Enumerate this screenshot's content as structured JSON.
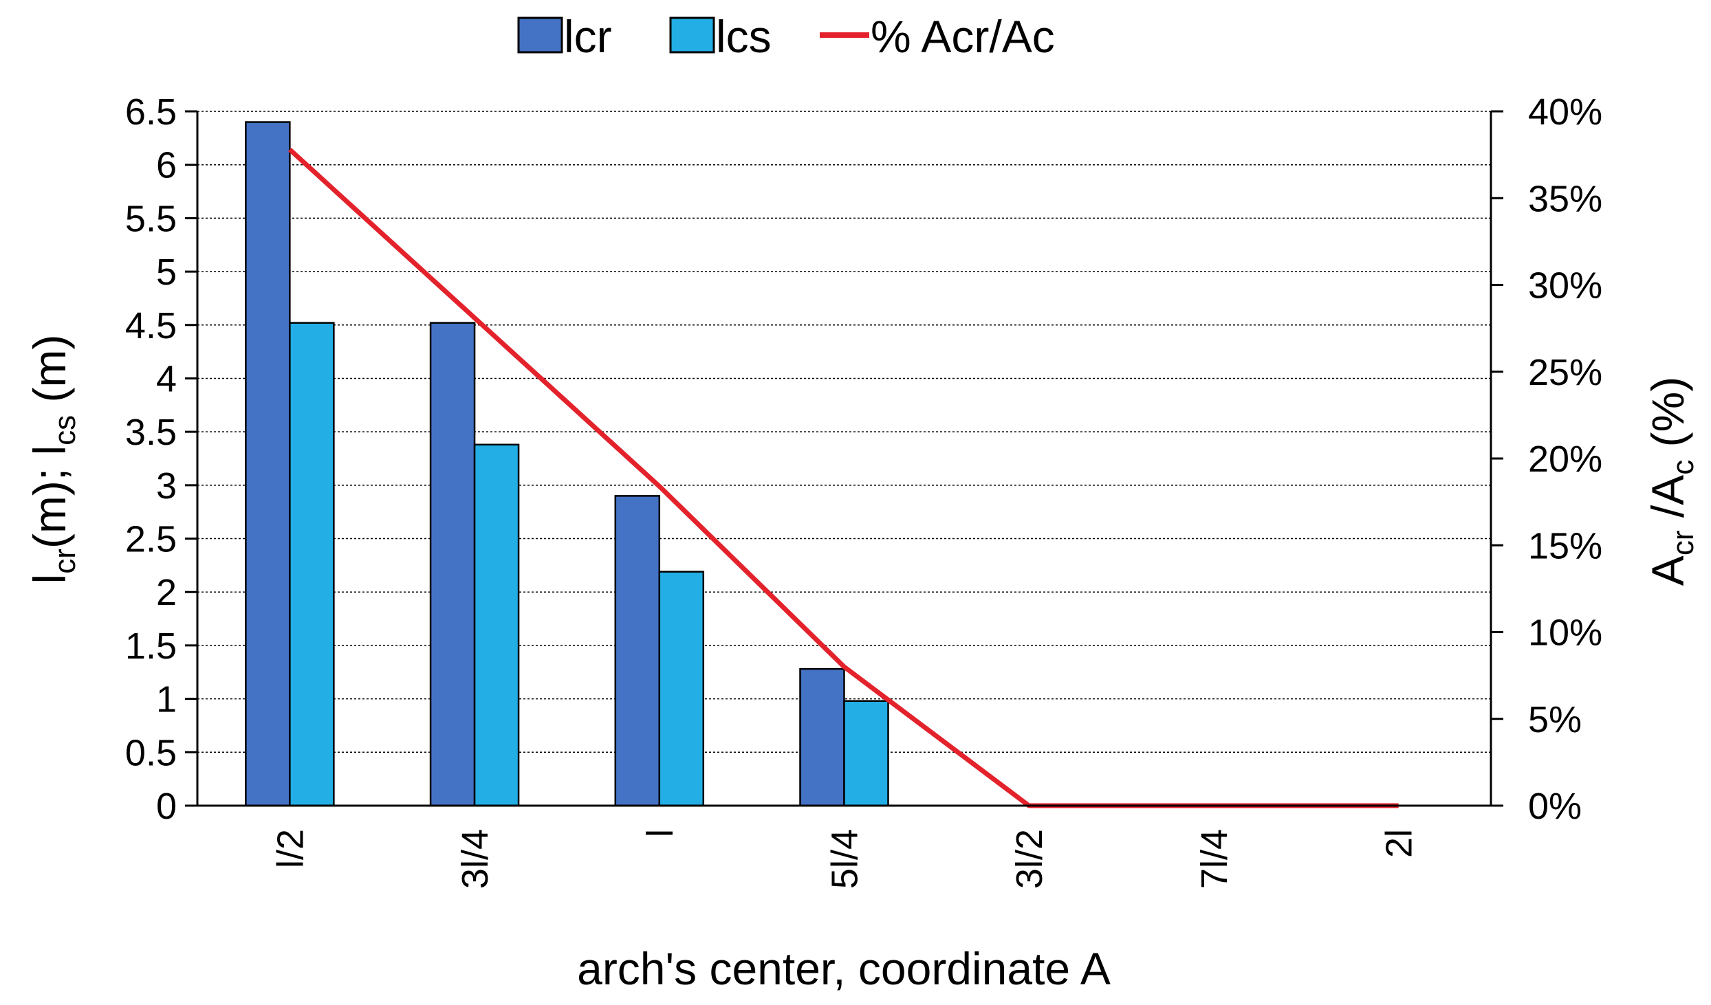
{
  "chart_data": {
    "type": "bar",
    "categories": [
      "l/2",
      "3l/4",
      "l",
      "5l/4",
      "3l/2",
      "7l/4",
      "2l"
    ],
    "series": [
      {
        "name": "lcr",
        "kind": "bar",
        "axis": "left",
        "color": "#4472C4",
        "values": [
          6.4,
          4.52,
          2.9,
          1.28,
          0,
          0,
          0
        ]
      },
      {
        "name": "lcs",
        "kind": "bar",
        "axis": "left",
        "color": "#23AEE5",
        "values": [
          4.52,
          3.38,
          2.19,
          0.98,
          0,
          0,
          0
        ]
      },
      {
        "name": "% Acr/Ac",
        "kind": "line",
        "axis": "right",
        "color": "#E3222B",
        "values": [
          0.378,
          0.281,
          0.184,
          0.08,
          0,
          0,
          0
        ]
      }
    ],
    "y_left": {
      "ylim": [
        0,
        6.5
      ],
      "ticks": [
        "0",
        "0.5",
        "1",
        "1.5",
        "2",
        "2.5",
        "3",
        "3.5",
        "4",
        "4.5",
        "5",
        "5.5",
        "6",
        "6.5"
      ],
      "label": {
        "main1": "l",
        "sub1": "cr",
        "main2": "(m); l",
        "sub2": "cs",
        "main3": " (m)"
      }
    },
    "y_right": {
      "ylim": [
        0,
        0.4
      ],
      "ticks": [
        "0%",
        "5%",
        "10%",
        "15%",
        "20%",
        "25%",
        "30%",
        "35%",
        "40%"
      ],
      "label": {
        "main1": "A",
        "sub1": "cr",
        "main2": " /A",
        "sub2": "c",
        "main3": " (%)"
      }
    },
    "xlabel": "arch's center, coordinate A",
    "grid": true,
    "legend_position": "top"
  }
}
